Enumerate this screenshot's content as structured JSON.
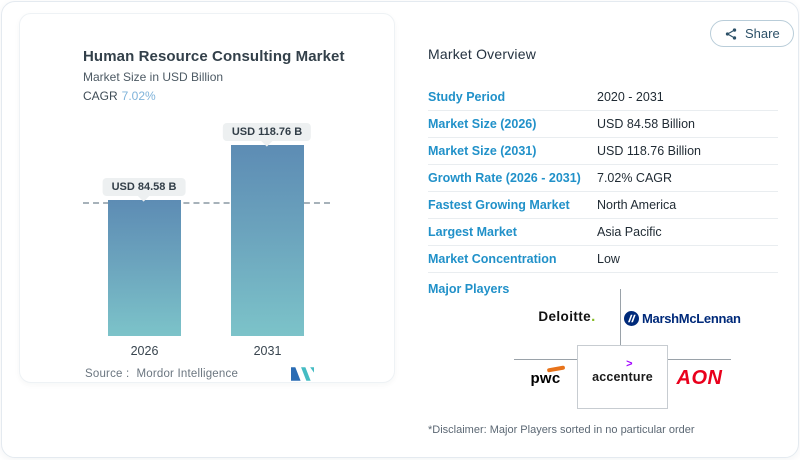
{
  "header": {
    "share_label": "Share"
  },
  "chart_card": {
    "title": "Human Resource Consulting Market",
    "subtitle": "Market Size in USD Billion",
    "cagr_label": "CAGR",
    "cagr_value": "7.02%",
    "source_label": "Source :",
    "source_value": "Mordor Intelligence"
  },
  "chart_data": {
    "type": "bar",
    "categories": [
      "2026",
      "2031"
    ],
    "values": [
      84.58,
      118.76
    ],
    "value_labels": [
      "USD 84.58 B",
      "USD 118.76 B"
    ],
    "title": "Human Resource Consulting Market",
    "ylabel": "Market Size in USD Billion",
    "ylim": [
      0,
      130
    ],
    "grid": false,
    "reference_line_value": 84.58,
    "cagr_percent": 7.02,
    "bar_gradient": [
      "#5d8cb4",
      "#7cc3c9"
    ]
  },
  "overview": {
    "title": "Market Overview",
    "rows": [
      {
        "label": "Study Period",
        "value": "2020 - 2031"
      },
      {
        "label": "Market Size (2026)",
        "value": "USD 84.58 Billion"
      },
      {
        "label": "Market Size (2031)",
        "value": "USD 118.76 Billion"
      },
      {
        "label": "Growth Rate (2026 - 2031)",
        "value": "7.02% CAGR"
      },
      {
        "label": "Fastest Growing Market",
        "value": "North America"
      },
      {
        "label": "Largest Market",
        "value": "Asia Pacific"
      },
      {
        "label": "Market Concentration",
        "value": "Low"
      }
    ],
    "major_players_label": "Major Players",
    "disclaimer": "*Disclaimer: Major Players sorted in no particular order"
  },
  "players": {
    "deloitte": "Deloitte",
    "deloitte_dot": ".",
    "marsh": "MarshMcLennan",
    "pwc": "pwc",
    "accenture": "accenture",
    "accenture_symbol": ">",
    "aon": "AON"
  },
  "colors": {
    "accent_blue": "#2191c9",
    "cagr_value_blue": "#7fb3da",
    "bar_top": "#5d8cb4",
    "bar_bottom": "#7cc3c9",
    "deloitte_green": "#86bc25",
    "marsh_navy": "#002a7a",
    "pwc_orange": "#e8731a",
    "accenture_purple": "#a100ff",
    "aon_red": "#e9001c"
  }
}
